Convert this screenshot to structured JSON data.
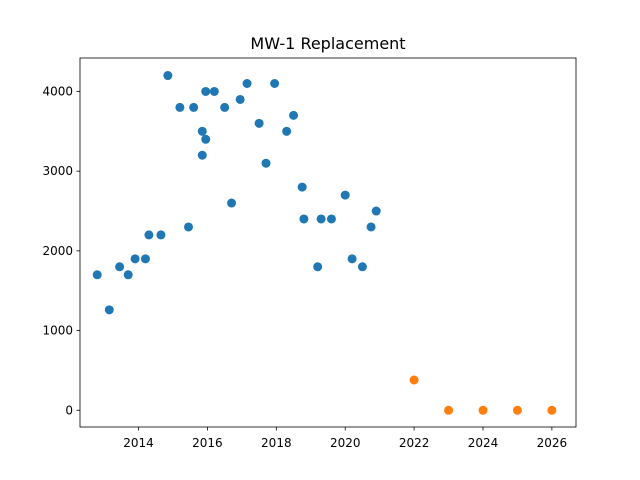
{
  "chart_data": {
    "type": "scatter",
    "title": "MW-1 Replacement",
    "xlabel": "",
    "ylabel": "",
    "xlim": [
      2012.3,
      2026.7
    ],
    "ylim": [
      -210,
      4420
    ],
    "x_ticks": [
      2014,
      2016,
      2018,
      2020,
      2022,
      2024,
      2026
    ],
    "y_ticks": [
      0,
      1000,
      2000,
      3000,
      4000
    ],
    "grid": false,
    "series": [
      {
        "color": "#1f77b4",
        "points": [
          [
            2012.8,
            1700
          ],
          [
            2013.15,
            1260
          ],
          [
            2013.45,
            1800
          ],
          [
            2013.7,
            1700
          ],
          [
            2013.9,
            1900
          ],
          [
            2014.2,
            1900
          ],
          [
            2014.3,
            2200
          ],
          [
            2014.65,
            2200
          ],
          [
            2014.85,
            4200
          ],
          [
            2015.2,
            3800
          ],
          [
            2015.45,
            2300
          ],
          [
            2015.6,
            3800
          ],
          [
            2015.85,
            3500
          ],
          [
            2015.85,
            3200
          ],
          [
            2015.95,
            3400
          ],
          [
            2015.95,
            4000
          ],
          [
            2016.2,
            4000
          ],
          [
            2016.5,
            3800
          ],
          [
            2016.7,
            2600
          ],
          [
            2016.95,
            3900
          ],
          [
            2017.15,
            4100
          ],
          [
            2017.5,
            3600
          ],
          [
            2017.7,
            3100
          ],
          [
            2017.95,
            4100
          ],
          [
            2018.3,
            3500
          ],
          [
            2018.5,
            3700
          ],
          [
            2018.75,
            2800
          ],
          [
            2018.8,
            2400
          ],
          [
            2019.2,
            1800
          ],
          [
            2019.3,
            2400
          ],
          [
            2019.6,
            2400
          ],
          [
            2020.0,
            2700
          ],
          [
            2020.2,
            1900
          ],
          [
            2020.5,
            1800
          ],
          [
            2020.75,
            2300
          ],
          [
            2020.9,
            2500
          ]
        ]
      },
      {
        "color": "#ff7f0e",
        "points": [
          [
            2022.0,
            380
          ],
          [
            2023.0,
            0
          ],
          [
            2024.0,
            0
          ],
          [
            2025.0,
            0
          ],
          [
            2026.0,
            0
          ]
        ]
      }
    ]
  }
}
